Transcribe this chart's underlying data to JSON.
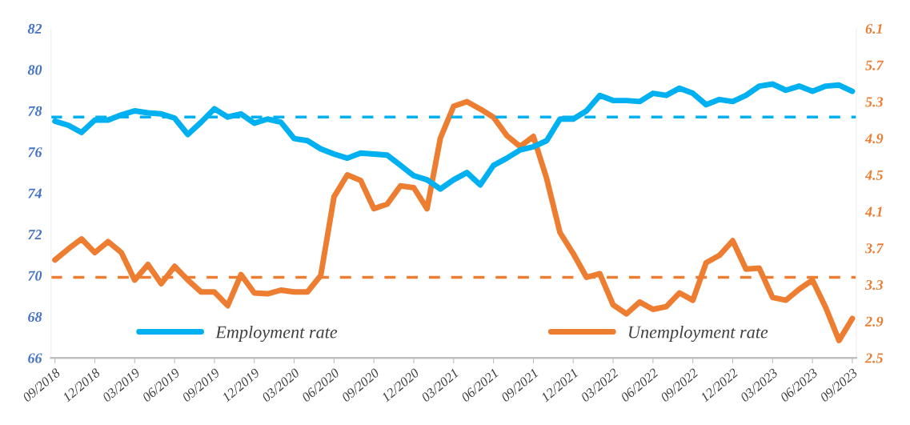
{
  "chart_data": {
    "type": "line",
    "categories": [
      "09/2018",
      null,
      null,
      "12/2018",
      null,
      null,
      "03/2019",
      null,
      null,
      "06/2019",
      null,
      null,
      "09/2019",
      null,
      null,
      "12/2019",
      null,
      null,
      "03/2020",
      null,
      null,
      "06/2020",
      null,
      null,
      "09/2020",
      null,
      null,
      "12/2020",
      null,
      null,
      "03/2021",
      null,
      null,
      "06/2021",
      null,
      null,
      "09/2021",
      null,
      null,
      "12/2021",
      null,
      null,
      "03/2022",
      null,
      null,
      "06/2022",
      null,
      null,
      "09/2022",
      null,
      null,
      "12/2022",
      null,
      null,
      "03/2023",
      null,
      null,
      "06/2023",
      null,
      null,
      "09/2023"
    ],
    "series": [
      {
        "name": "Employment rate",
        "color": "#00b0f0",
        "values": [
          77.5,
          77.3,
          76.95,
          77.55,
          77.55,
          77.8,
          78.0,
          77.9,
          77.85,
          77.65,
          76.85,
          77.45,
          78.1,
          77.7,
          77.85,
          77.4,
          77.6,
          77.45,
          76.65,
          76.55,
          76.15,
          75.9,
          75.7,
          75.95,
          75.9,
          75.85,
          75.35,
          74.85,
          74.65,
          74.2,
          74.65,
          75.0,
          74.4,
          75.35,
          75.7,
          76.1,
          76.25,
          76.55,
          77.6,
          77.6,
          78.0,
          78.75,
          78.5,
          78.5,
          78.45,
          78.85,
          78.75,
          79.1,
          78.85,
          78.3,
          78.55,
          78.45,
          78.75,
          79.2,
          79.3,
          79.0,
          79.2,
          78.95,
          79.2,
          79.25,
          78.95
        ]
      },
      {
        "name": "Unemployment rate",
        "color": "#ed7d31",
        "axis": "y2",
        "values": [
          3.57,
          3.69,
          3.8,
          3.65,
          3.77,
          3.65,
          3.35,
          3.52,
          3.31,
          3.5,
          3.35,
          3.22,
          3.22,
          3.07,
          3.41,
          3.21,
          3.2,
          3.24,
          3.22,
          3.22,
          3.4,
          4.26,
          4.5,
          4.44,
          4.13,
          4.18,
          4.38,
          4.36,
          4.13,
          4.9,
          5.25,
          5.3,
          5.22,
          5.13,
          4.93,
          4.81,
          4.92,
          4.46,
          3.87,
          3.64,
          3.38,
          3.42,
          3.08,
          2.98,
          3.11,
          3.03,
          3.06,
          3.21,
          3.13,
          3.54,
          3.62,
          3.78,
          3.47,
          3.48,
          3.16,
          3.13,
          3.25,
          3.35,
          3.05,
          2.69,
          2.93
        ]
      }
    ],
    "ylim": [
      66,
      82
    ],
    "yticks": [
      66,
      68,
      70,
      72,
      74,
      76,
      78,
      80,
      82
    ],
    "y2lim": [
      2.5,
      6.1
    ],
    "y2ticks": [
      2.5,
      2.9,
      3.3,
      3.7,
      4.1,
      4.5,
      4.9,
      5.3,
      5.7,
      6.1
    ],
    "ref_lines": [
      {
        "axis": "y",
        "value": 77.7,
        "color": "#00b0f0",
        "line_style": "dashed"
      },
      {
        "axis": "y2",
        "value": 3.38,
        "color": "#ed7d31",
        "line_style": "dashed"
      }
    ],
    "grid": false,
    "legend": "bottom",
    "marker": "none",
    "line_style": "solid"
  }
}
